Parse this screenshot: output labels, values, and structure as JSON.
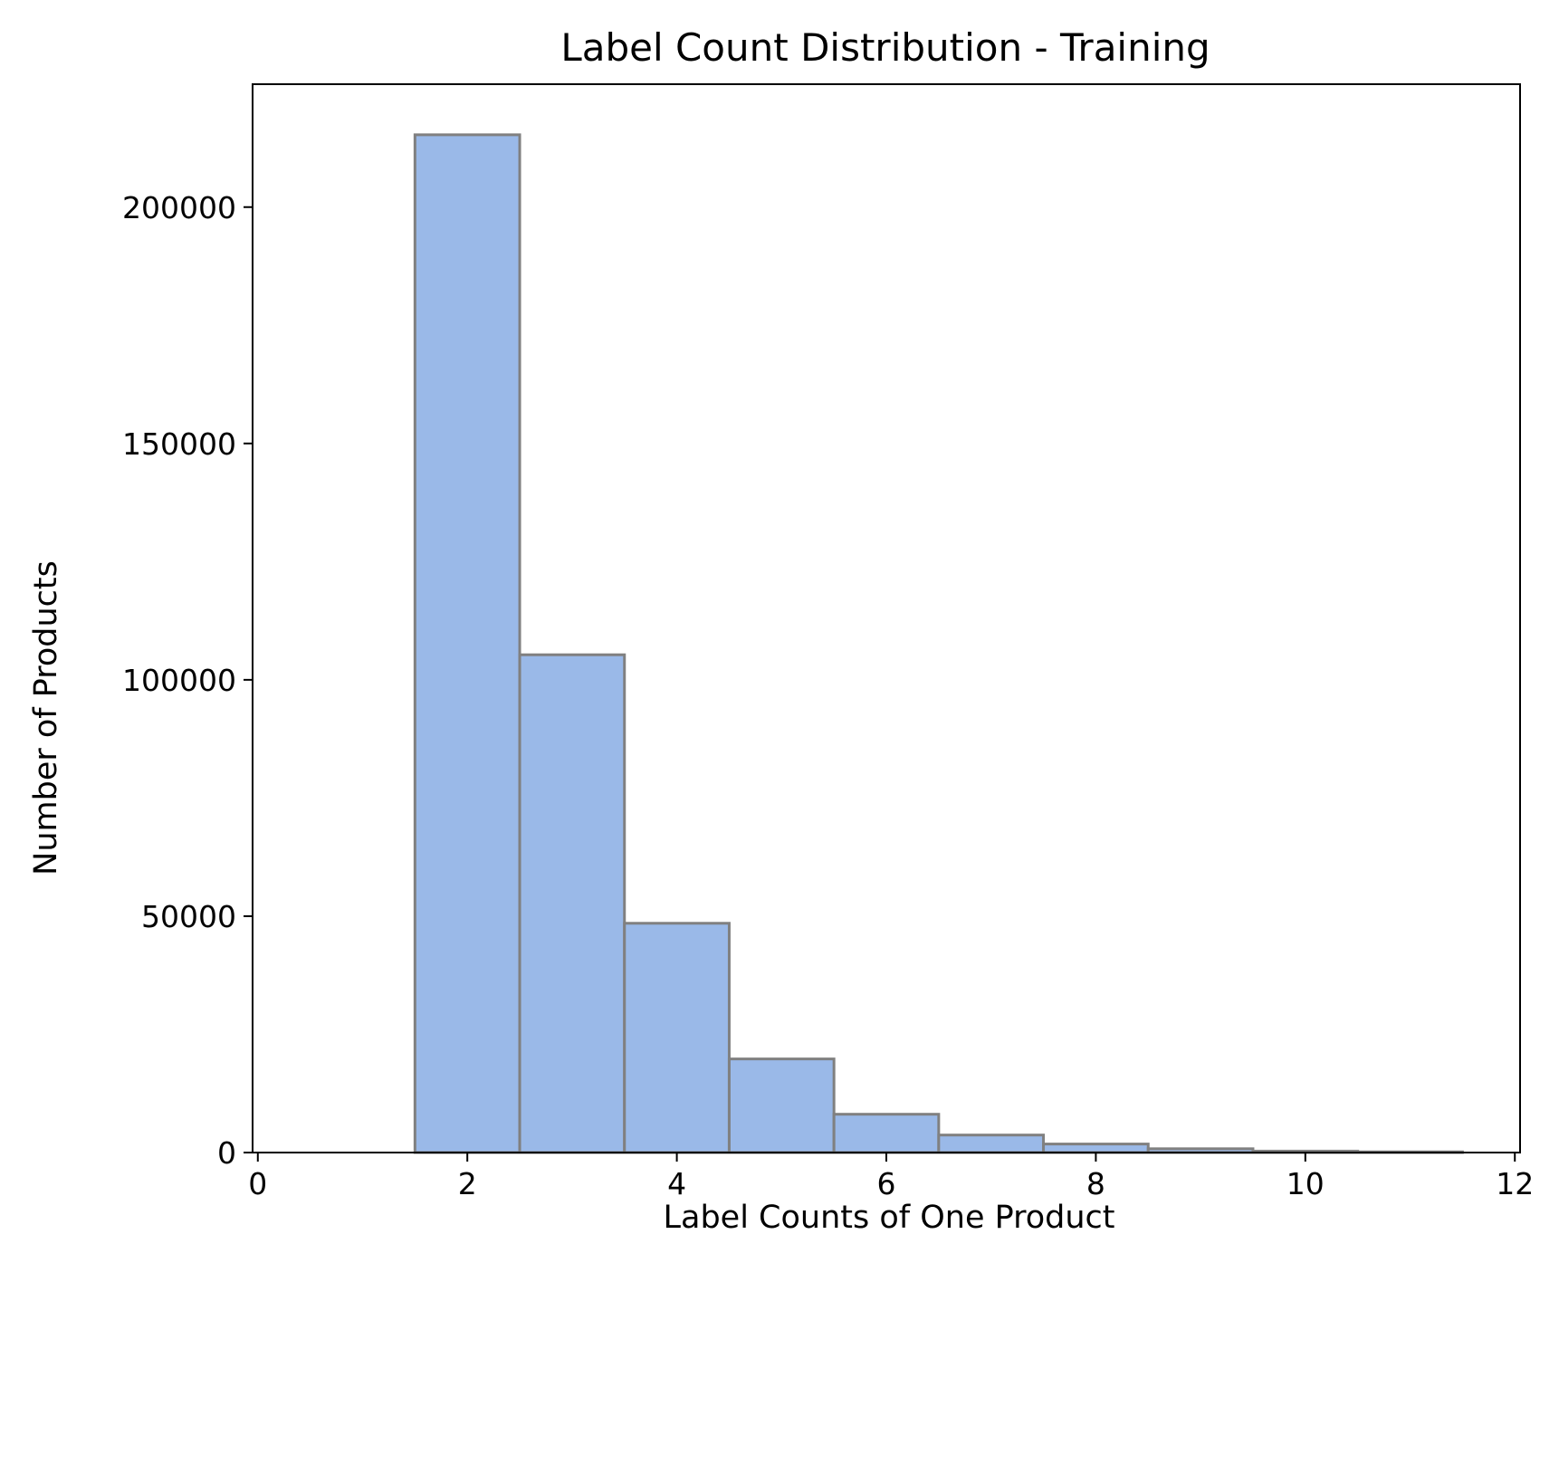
{
  "chart_data": {
    "type": "bar",
    "title": "Label Count Distribution - Training",
    "xlabel": "Label Counts of One Product",
    "ylabel": "Number of Products",
    "xlim": [
      -0.05,
      12.05
    ],
    "ylim": [
      0,
      226000
    ],
    "x_ticks": [
      0,
      2,
      4,
      6,
      8,
      10,
      12
    ],
    "y_ticks": [
      0,
      50000,
      100000,
      150000,
      200000
    ],
    "bins": [
      {
        "x0": 0.5,
        "x1": 1.5,
        "count": 0
      },
      {
        "x0": 1.5,
        "x1": 2.5,
        "count": 215300
      },
      {
        "x0": 2.5,
        "x1": 3.5,
        "count": 105300
      },
      {
        "x0": 3.5,
        "x1": 4.5,
        "count": 48500
      },
      {
        "x0": 4.5,
        "x1": 5.5,
        "count": 19800
      },
      {
        "x0": 5.5,
        "x1": 6.5,
        "count": 8100
      },
      {
        "x0": 6.5,
        "x1": 7.5,
        "count": 3700
      },
      {
        "x0": 7.5,
        "x1": 8.5,
        "count": 1800
      },
      {
        "x0": 8.5,
        "x1": 9.5,
        "count": 800
      },
      {
        "x0": 9.5,
        "x1": 10.5,
        "count": 300
      },
      {
        "x0": 10.5,
        "x1": 11.5,
        "count": 150
      }
    ],
    "bar_color": "#9ab9e8",
    "edge_color": "#808080",
    "grid": false,
    "legend": "none"
  }
}
